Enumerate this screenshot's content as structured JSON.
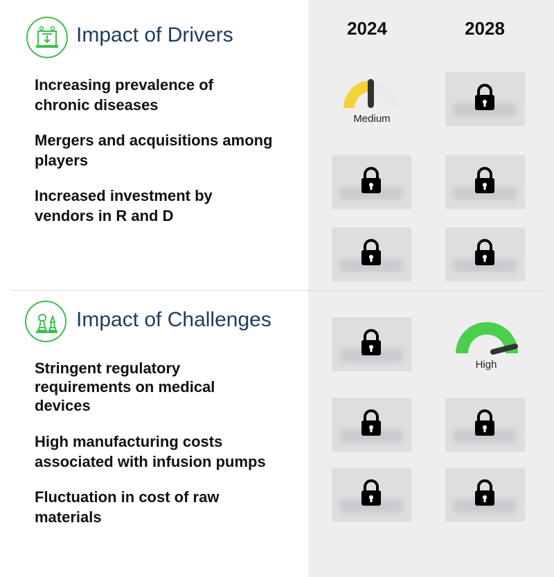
{
  "years": [
    "2024",
    "2028"
  ],
  "drivers": {
    "title": "Impact of Drivers",
    "icon": "factory-icon",
    "items": [
      {
        "label": "Increasing prevalence of\nchronic diseases"
      },
      {
        "label": "Mergers and acquisitions among\nplayers"
      },
      {
        "label": "Increased investment by\nvendors in R and D"
      }
    ],
    "gauge_2024": {
      "label": "Medium",
      "level": "medium",
      "color": "#f2d338"
    }
  },
  "challenges": {
    "title": "Impact of Challenges",
    "icon": "chess-icon",
    "items": [
      {
        "label": "Stringent regulatory\nrequirements on medical\ndevices"
      },
      {
        "label": "High manufacturing costs\nassociated with infusion pumps"
      },
      {
        "label": "Fluctuation in cost of raw\nmaterials"
      }
    ],
    "gauge_2028": {
      "label": "High",
      "level": "high",
      "color": "#4ccf4c"
    }
  },
  "colors": {
    "accent": "#3fbf4f",
    "title": "#1f3a5f",
    "panel": "#eeeeee"
  }
}
